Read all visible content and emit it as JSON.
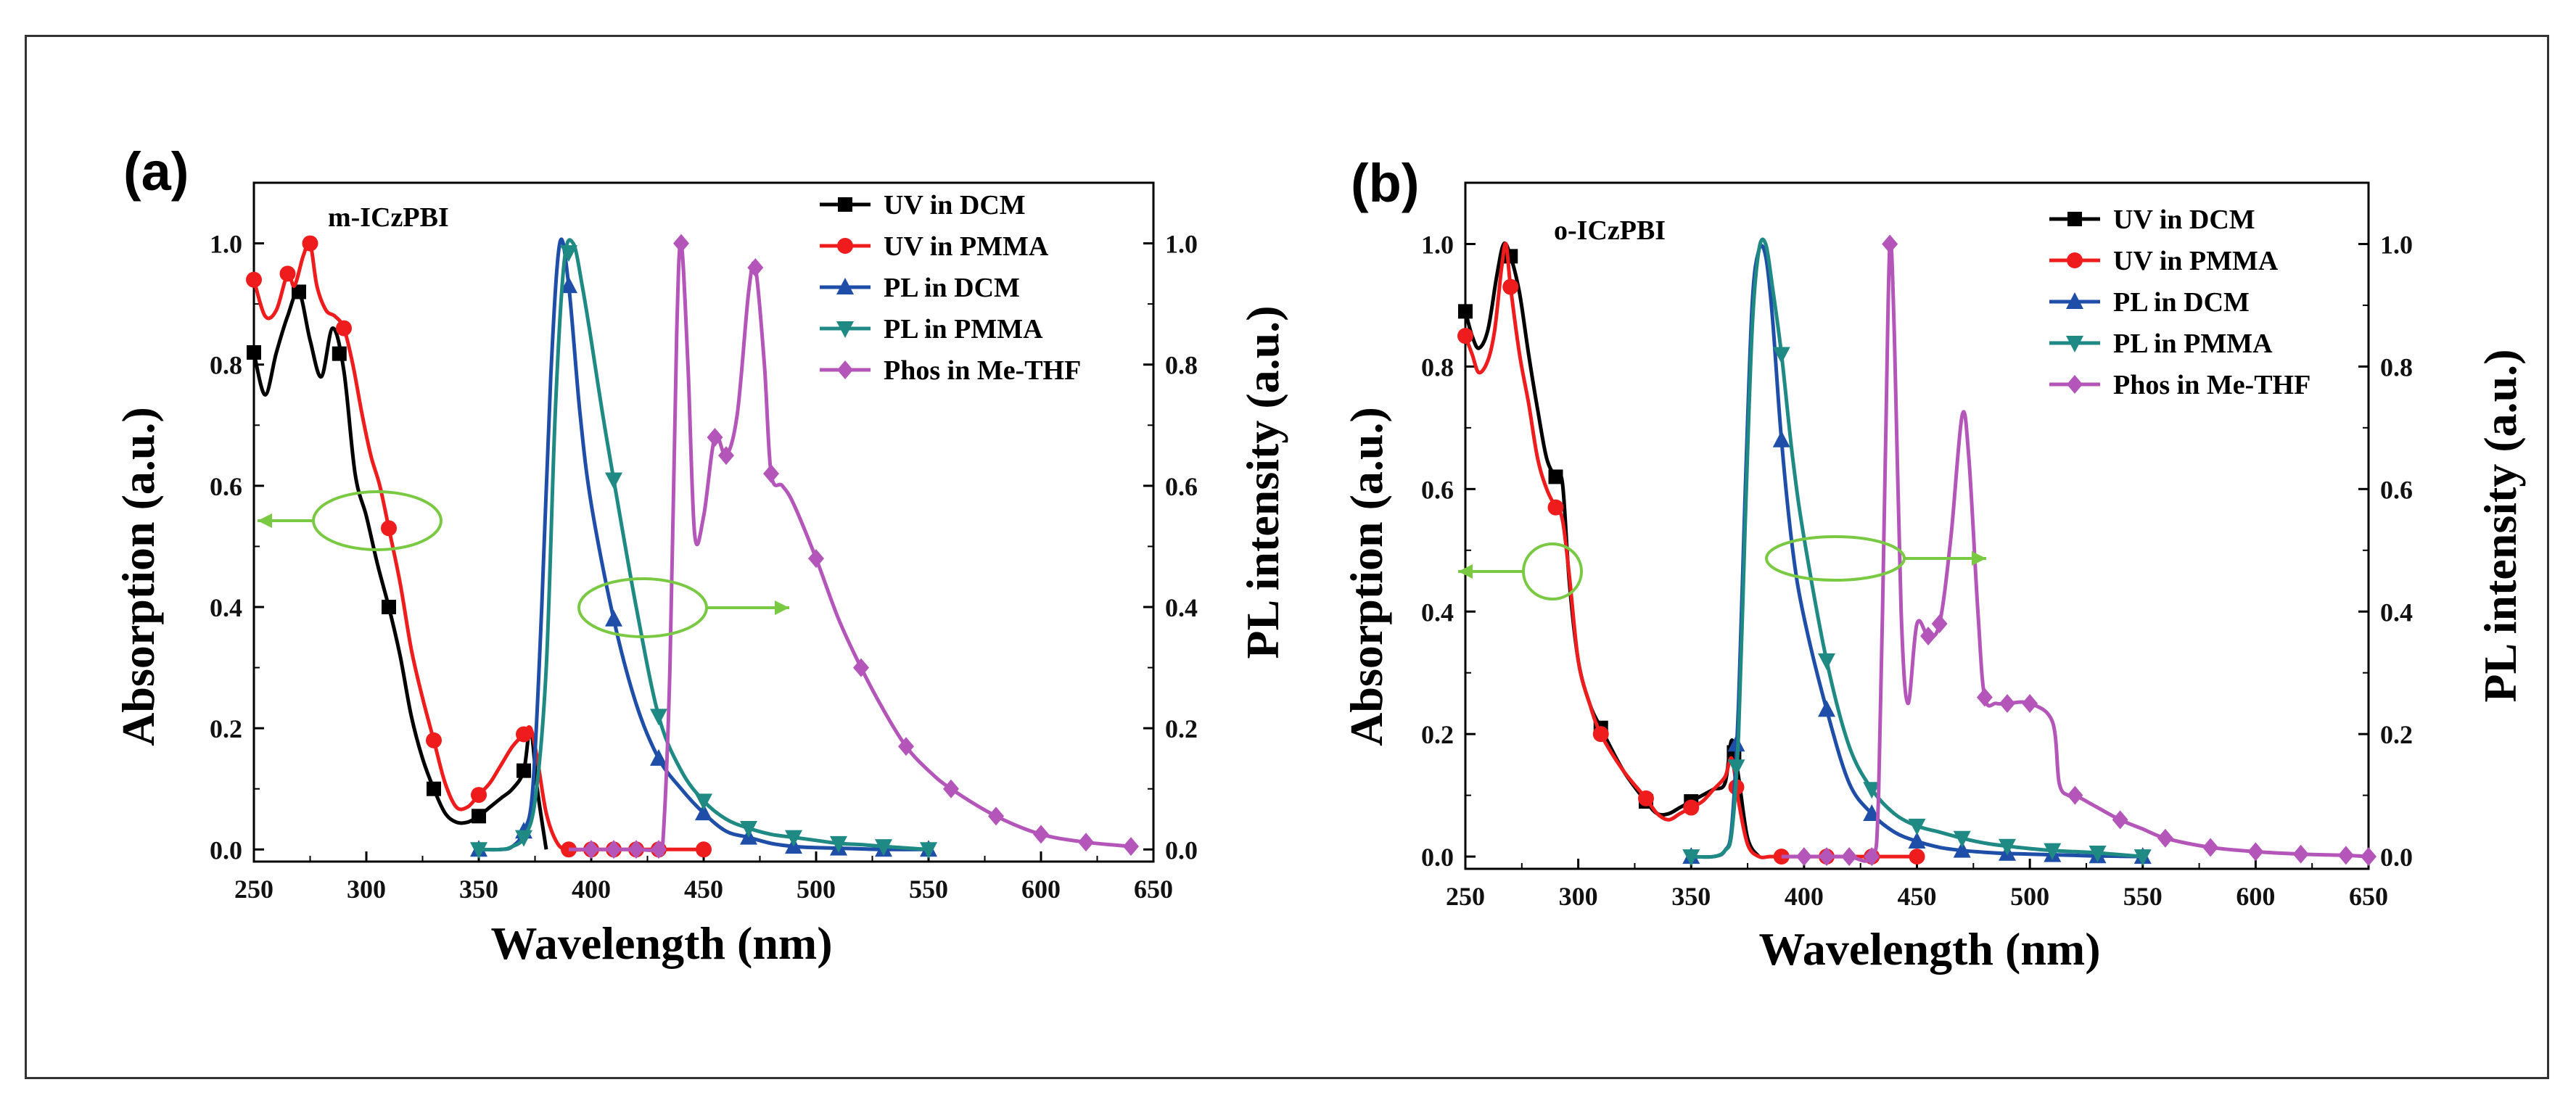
{
  "colors": {
    "UV in DCM": "#000000",
    "UV in PMMA": "#ee1c1c",
    "PL in DCM": "#1f4ea8",
    "PL in PMMA": "#1f8a84",
    "Phos in Me-THF": "#b456b9",
    "annotation": "#7ac943"
  },
  "chart_data": [
    {
      "type": "line",
      "panel": "(a)",
      "title": "m-ICzPBI",
      "xlabel": "Wavelength (nm)",
      "ylabel": "Absorption (a.u.)",
      "y2label": "PL intensity (a.u.)",
      "xlim": [
        250,
        650
      ],
      "ylim": [
        -0.02,
        1.1
      ],
      "y2lim": [
        -0.02,
        1.1
      ],
      "xticks": [
        "250",
        "300",
        "350",
        "400",
        "450",
        "500",
        "550",
        "600",
        "650"
      ],
      "yticks": [
        "0.0",
        "0.2",
        "0.4",
        "0.6",
        "0.8",
        "1.0"
      ],
      "y2ticks": [
        "0.0",
        "0.2",
        "0.4",
        "0.6",
        "0.8",
        "1.0"
      ],
      "annotations": [
        {
          "points": "left",
          "target": "Absorption"
        },
        {
          "points": "right",
          "target": "PL intensity"
        }
      ],
      "series": [
        {
          "name": "UV in DCM",
          "marker": "square",
          "axis": "left",
          "x": [
            250,
            255,
            260,
            265,
            270,
            275,
            280,
            285,
            290,
            295,
            300,
            305,
            310,
            315,
            320,
            325,
            330,
            335,
            340,
            345,
            350,
            355,
            360,
            365,
            370,
            373,
            376,
            380
          ],
          "y": [
            0.82,
            0.75,
            0.82,
            0.88,
            0.92,
            0.84,
            0.78,
            0.86,
            0.79,
            0.62,
            0.55,
            0.47,
            0.4,
            0.32,
            0.22,
            0.15,
            0.1,
            0.06,
            0.045,
            0.045,
            0.055,
            0.07,
            0.085,
            0.1,
            0.13,
            0.2,
            0.1,
            0.0
          ],
          "mx": [
            250,
            270,
            288,
            310,
            330,
            350,
            370
          ]
        },
        {
          "name": "UV in PMMA",
          "marker": "circle",
          "axis": "left",
          "x": [
            250,
            255,
            260,
            265,
            268,
            272,
            275,
            278,
            282,
            286,
            290,
            294,
            298,
            302,
            306,
            310,
            315,
            320,
            325,
            330,
            335,
            340,
            345,
            350,
            355,
            360,
            365,
            370,
            373,
            376,
            380,
            385,
            390,
            400,
            410,
            420,
            430,
            440,
            450
          ],
          "y": [
            0.94,
            0.88,
            0.89,
            0.95,
            0.93,
            0.98,
            1.0,
            0.93,
            0.89,
            0.88,
            0.86,
            0.8,
            0.72,
            0.65,
            0.6,
            0.53,
            0.44,
            0.33,
            0.25,
            0.18,
            0.11,
            0.07,
            0.07,
            0.09,
            0.11,
            0.14,
            0.17,
            0.19,
            0.2,
            0.15,
            0.06,
            0.01,
            0.0,
            0.0,
            0.0,
            0.0,
            0.0,
            0.0,
            0.0
          ],
          "mx": [
            250,
            265,
            275,
            290,
            310,
            330,
            350,
            370,
            390,
            400,
            410,
            420,
            430,
            450
          ]
        },
        {
          "name": "PL in DCM",
          "marker": "triangle",
          "axis": "right",
          "x": [
            350,
            360,
            365,
            370,
            374,
            378,
            382,
            386,
            390,
            395,
            400,
            410,
            420,
            430,
            440,
            450,
            460,
            470,
            480,
            490,
            500,
            510,
            520,
            530,
            550
          ],
          "y": [
            0.0,
            0.0,
            0.005,
            0.03,
            0.1,
            0.4,
            0.78,
            1.0,
            0.93,
            0.72,
            0.57,
            0.38,
            0.24,
            0.15,
            0.1,
            0.06,
            0.03,
            0.02,
            0.01,
            0.005,
            0.003,
            0.002,
            0.001,
            0.0,
            0.0
          ],
          "mx": [
            350,
            370,
            390,
            410,
            430,
            450,
            470,
            490,
            510,
            530,
            550
          ]
        },
        {
          "name": "PL in PMMA",
          "marker": "triangle-down",
          "axis": "right",
          "x": [
            350,
            360,
            365,
            370,
            375,
            380,
            384,
            388,
            392,
            396,
            400,
            405,
            410,
            420,
            430,
            440,
            450,
            460,
            470,
            480,
            490,
            500,
            510,
            520,
            530,
            550
          ],
          "y": [
            0.0,
            0.0,
            0.005,
            0.02,
            0.08,
            0.3,
            0.72,
            0.97,
            1.0,
            0.93,
            0.84,
            0.72,
            0.61,
            0.4,
            0.22,
            0.13,
            0.08,
            0.05,
            0.035,
            0.025,
            0.02,
            0.015,
            0.01,
            0.008,
            0.005,
            0.0
          ],
          "mx": [
            350,
            370,
            390,
            410,
            430,
            450,
            470,
            490,
            510,
            530,
            550
          ]
        },
        {
          "name": "Phos in Me-THF",
          "marker": "diamond",
          "axis": "right",
          "x": [
            390,
            400,
            410,
            420,
            430,
            432,
            435,
            438,
            440,
            443,
            446,
            450,
            455,
            460,
            465,
            470,
            473,
            477,
            480,
            485,
            490,
            500,
            510,
            520,
            530,
            540,
            550,
            560,
            580,
            600,
            620,
            640
          ],
          "y": [
            0.0,
            0.0,
            0.0,
            0.0,
            0.0,
            0.02,
            0.3,
            0.85,
            1.0,
            0.8,
            0.52,
            0.55,
            0.68,
            0.65,
            0.72,
            0.92,
            0.96,
            0.8,
            0.62,
            0.6,
            0.57,
            0.48,
            0.38,
            0.3,
            0.23,
            0.17,
            0.13,
            0.1,
            0.055,
            0.025,
            0.012,
            0.005
          ],
          "mx": [
            400,
            410,
            420,
            430,
            440,
            455,
            460,
            473,
            480,
            500,
            520,
            540,
            560,
            580,
            600,
            620,
            640
          ]
        }
      ]
    },
    {
      "type": "line",
      "panel": "(b)",
      "title": "o-ICzPBI",
      "xlabel": "Wavelength (nm)",
      "ylabel": "Absorption (a.u.)",
      "y2label": "PL intensity (a.u.)",
      "xlim": [
        250,
        650
      ],
      "ylim": [
        -0.02,
        1.1
      ],
      "y2lim": [
        -0.02,
        1.1
      ],
      "xticks": [
        "250",
        "300",
        "350",
        "400",
        "450",
        "500",
        "550",
        "600",
        "650"
      ],
      "yticks": [
        "0.0",
        "0.2",
        "0.4",
        "0.6",
        "0.8",
        "1.0"
      ],
      "y2ticks": [
        "0.0",
        "0.2",
        "0.4",
        "0.6",
        "0.8",
        "1.0"
      ],
      "annotations": [
        {
          "points": "left",
          "target": "Absorption"
        },
        {
          "points": "right",
          "target": "PL intensity"
        }
      ],
      "series": [
        {
          "name": "UV in DCM",
          "marker": "square",
          "axis": "left",
          "x": [
            250,
            253,
            256,
            260,
            264,
            267,
            270,
            274,
            278,
            282,
            286,
            290,
            293,
            296,
            300,
            305,
            310,
            320,
            330,
            335,
            340,
            345,
            350,
            355,
            360,
            365,
            368,
            371,
            375,
            380
          ],
          "y": [
            0.89,
            0.85,
            0.83,
            0.86,
            0.95,
            1.0,
            0.98,
            0.92,
            0.82,
            0.73,
            0.65,
            0.62,
            0.61,
            0.45,
            0.32,
            0.25,
            0.21,
            0.14,
            0.09,
            0.07,
            0.07,
            0.08,
            0.09,
            0.1,
            0.11,
            0.12,
            0.19,
            0.13,
            0.03,
            0.0
          ],
          "mx": [
            250,
            270,
            290,
            310,
            330,
            350,
            369
          ]
        },
        {
          "name": "UV in PMMA",
          "marker": "circle",
          "axis": "left",
          "x": [
            250,
            253,
            256,
            260,
            263,
            266,
            268,
            270,
            274,
            278,
            282,
            286,
            290,
            293,
            296,
            300,
            305,
            310,
            320,
            330,
            335,
            340,
            345,
            350,
            355,
            360,
            365,
            368,
            371,
            375,
            380,
            385,
            390,
            400,
            410,
            420,
            430,
            440,
            450
          ],
          "y": [
            0.85,
            0.82,
            0.79,
            0.81,
            0.86,
            0.96,
            1.0,
            0.93,
            0.82,
            0.74,
            0.65,
            0.6,
            0.57,
            0.55,
            0.46,
            0.32,
            0.25,
            0.2,
            0.14,
            0.095,
            0.07,
            0.06,
            0.07,
            0.08,
            0.09,
            0.11,
            0.13,
            0.16,
            0.09,
            0.02,
            0.0,
            0.0,
            0.0,
            0.0,
            0.0,
            0.0,
            0.0,
            0.0,
            0.0
          ],
          "mx": [
            250,
            270,
            290,
            310,
            330,
            350,
            370,
            390,
            410,
            430,
            450
          ]
        },
        {
          "name": "PL in DCM",
          "marker": "triangle",
          "axis": "right",
          "x": [
            350,
            360,
            365,
            368,
            371,
            374,
            377,
            380,
            383,
            386,
            390,
            395,
            400,
            410,
            420,
            430,
            440,
            450,
            460,
            470,
            480,
            490,
            500,
            510,
            520,
            530,
            550
          ],
          "y": [
            0.0,
            0.0,
            0.01,
            0.05,
            0.25,
            0.6,
            0.9,
            0.99,
            0.98,
            0.88,
            0.68,
            0.5,
            0.39,
            0.24,
            0.12,
            0.07,
            0.04,
            0.025,
            0.015,
            0.01,
            0.007,
            0.005,
            0.004,
            0.003,
            0.002,
            0.001,
            0.0
          ],
          "mx": [
            350,
            370,
            390,
            410,
            430,
            450,
            470,
            490,
            510,
            530,
            550
          ]
        },
        {
          "name": "PL in PMMA",
          "marker": "triangle-down",
          "axis": "right",
          "x": [
            350,
            360,
            365,
            368,
            371,
            374,
            377,
            380,
            383,
            386,
            390,
            395,
            400,
            410,
            420,
            430,
            440,
            450,
            460,
            470,
            480,
            490,
            500,
            510,
            520,
            530,
            550
          ],
          "y": [
            0.0,
            0.0,
            0.01,
            0.04,
            0.2,
            0.55,
            0.86,
            0.99,
            1.0,
            0.93,
            0.82,
            0.65,
            0.52,
            0.32,
            0.18,
            0.11,
            0.07,
            0.05,
            0.04,
            0.03,
            0.022,
            0.017,
            0.013,
            0.01,
            0.008,
            0.006,
            0.0
          ],
          "mx": [
            350,
            370,
            390,
            410,
            430,
            450,
            470,
            490,
            510,
            530,
            550
          ]
        },
        {
          "name": "Phos in Me-THF",
          "marker": "diamond",
          "axis": "right",
          "x": [
            390,
            400,
            410,
            420,
            430,
            433,
            436,
            438,
            440,
            443,
            446,
            450,
            455,
            460,
            465,
            470,
            473,
            477,
            480,
            485,
            490,
            500,
            510,
            513,
            517,
            520,
            530,
            540,
            550,
            560,
            580,
            600,
            620,
            640,
            650
          ],
          "y": [
            0.0,
            0.0,
            0.0,
            0.0,
            0.0,
            0.1,
            0.65,
            1.0,
            0.85,
            0.4,
            0.25,
            0.38,
            0.36,
            0.38,
            0.52,
            0.72,
            0.65,
            0.4,
            0.26,
            0.25,
            0.25,
            0.25,
            0.22,
            0.12,
            0.1,
            0.1,
            0.08,
            0.06,
            0.045,
            0.03,
            0.015,
            0.008,
            0.004,
            0.002,
            0.0
          ],
          "mx": [
            400,
            410,
            420,
            430,
            438,
            455,
            460,
            480,
            490,
            500,
            520,
            540,
            560,
            580,
            600,
            620,
            640,
            650
          ]
        }
      ]
    }
  ]
}
